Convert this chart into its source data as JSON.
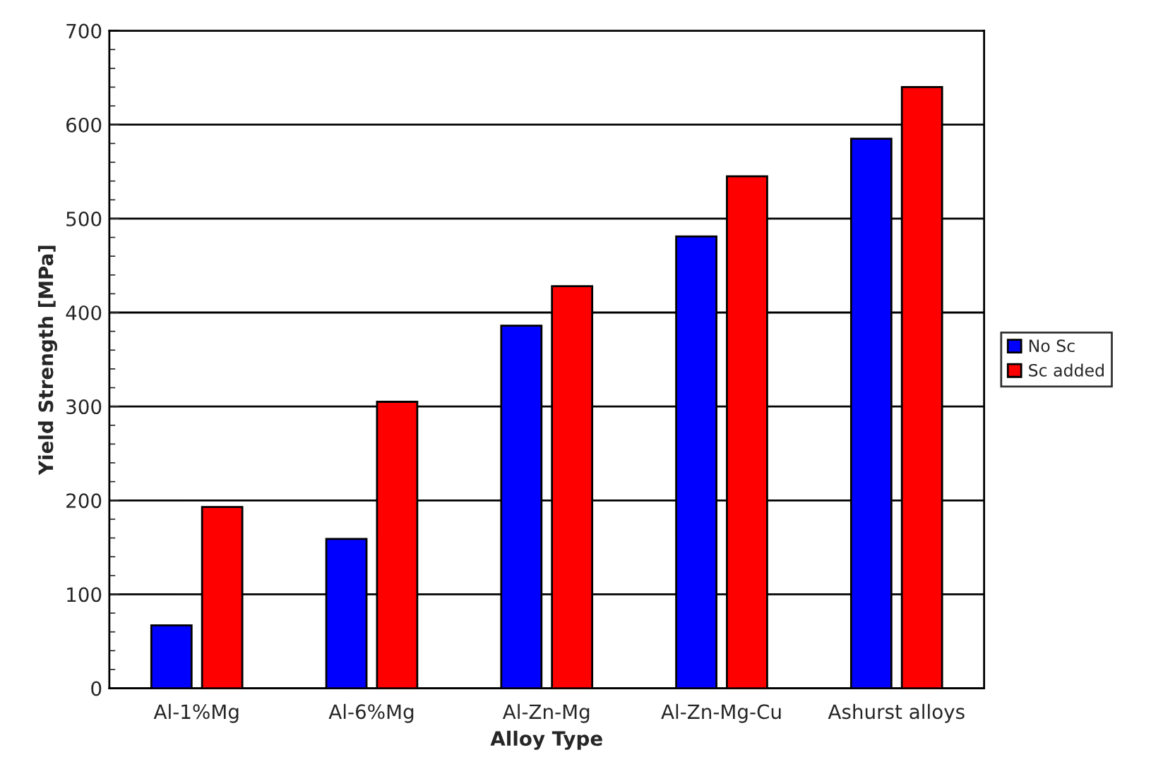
{
  "chart_data": {
    "type": "bar",
    "xlabel": "Alloy Type",
    "ylabel": "Yield Strength [MPa]",
    "categories": [
      "Al-1%Mg",
      "Al-6%Mg",
      "Al-Zn-Mg",
      "Al-Zn-Mg-Cu",
      "Ashurst alloys"
    ],
    "series": [
      {
        "name": "No Sc",
        "color": "#0000ff",
        "values": [
          67,
          159,
          386,
          481,
          585
        ]
      },
      {
        "name": "Sc added",
        "color": "#ff0000",
        "values": [
          193,
          305,
          428,
          545,
          640
        ]
      }
    ],
    "ylim": [
      0,
      700
    ],
    "yticks": [
      0,
      100,
      200,
      300,
      400,
      500,
      600,
      700
    ],
    "grid": "y",
    "legend": "right"
  }
}
